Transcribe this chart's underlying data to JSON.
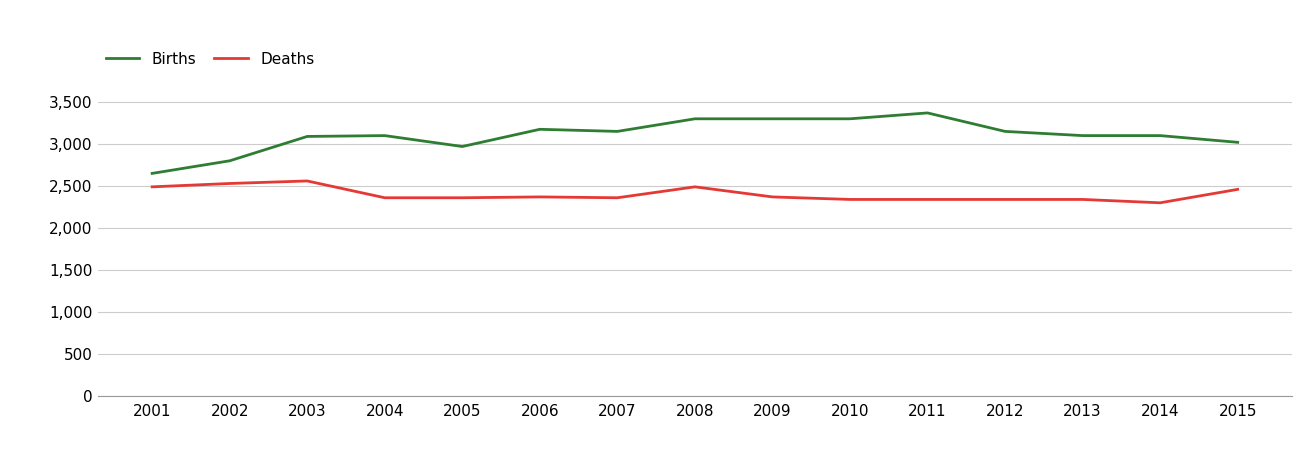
{
  "years": [
    2001,
    2002,
    2003,
    2004,
    2005,
    2006,
    2007,
    2008,
    2009,
    2010,
    2011,
    2012,
    2013,
    2014,
    2015
  ],
  "births": [
    2650,
    2800,
    3090,
    3100,
    2970,
    3175,
    3150,
    3300,
    3300,
    3300,
    3370,
    3150,
    3100,
    3100,
    3020
  ],
  "deaths": [
    2490,
    2530,
    2560,
    2360,
    2360,
    2370,
    2360,
    2490,
    2370,
    2340,
    2340,
    2340,
    2340,
    2300,
    2460
  ],
  "births_color": "#2e7d32",
  "deaths_color": "#e53935",
  "line_width": 2.0,
  "ylim": [
    0,
    3750
  ],
  "yticks": [
    0,
    500,
    1000,
    1500,
    2000,
    2500,
    3000,
    3500
  ],
  "background_color": "#ffffff",
  "grid_color": "#cccccc",
  "legend_labels": [
    "Births",
    "Deaths"
  ],
  "tick_fontsize": 11,
  "legend_fontsize": 11
}
